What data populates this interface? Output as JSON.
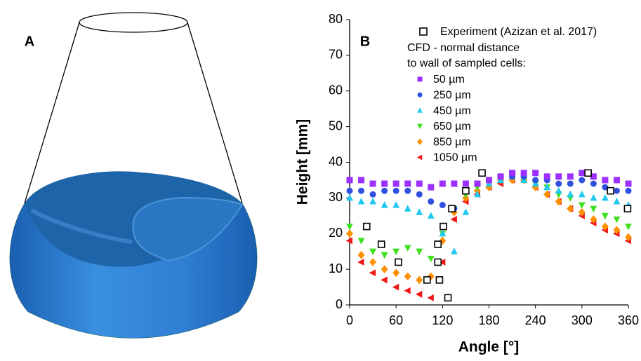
{
  "panel_a": {
    "label": "A"
  },
  "chart_data": {
    "type": "scatter",
    "panel_label": "B",
    "xlabel": "Angle   [°]",
    "ylabel": "Height   [mm]",
    "xlim": [
      0,
      360
    ],
    "xticks": [
      0,
      60,
      120,
      180,
      240,
      300,
      360
    ],
    "ylim": [
      0,
      80
    ],
    "yticks": [
      0,
      10,
      20,
      30,
      40,
      50,
      60,
      70,
      80
    ],
    "legend_title": [
      "CFD - normal distance",
      "to wall of sampled cells:"
    ],
    "series": [
      {
        "name": "Experiment (Azizan et al. 2017)",
        "marker": "square-open",
        "color": "#000000",
        "x": [
          22,
          41,
          63,
          100,
          116,
          114,
          114,
          121,
          127,
          132,
          150,
          171,
          308,
          337,
          359
        ],
        "y": [
          22,
          17,
          12,
          7,
          7,
          12,
          17,
          22,
          2,
          27,
          32,
          37,
          37,
          32,
          27
        ]
      },
      {
        "name": "50 µm",
        "marker": "square",
        "color": "#9b30ff",
        "x": [
          0,
          15,
          30,
          45,
          60,
          75,
          90,
          105,
          120,
          135,
          150,
          165,
          180,
          195,
          210,
          225,
          240,
          255,
          270,
          285,
          300,
          315,
          330,
          345,
          360
        ],
        "y": [
          35,
          35,
          34,
          34,
          34,
          34,
          34,
          33,
          34,
          34,
          34,
          34,
          35,
          36,
          37,
          37,
          37,
          36,
          36,
          36,
          37,
          36,
          35,
          35,
          34
        ]
      },
      {
        "name": "250 µm",
        "marker": "circle",
        "color": "#3050e0",
        "x": [
          0,
          15,
          30,
          45,
          60,
          75,
          90,
          105,
          120,
          135,
          150,
          165,
          180,
          195,
          210,
          225,
          240,
          255,
          270,
          285,
          300,
          315,
          330,
          345,
          360
        ],
        "y": [
          32,
          32,
          31,
          32,
          32,
          32,
          31,
          29,
          28,
          27,
          32,
          34,
          35,
          36,
          36,
          36,
          35,
          35,
          34,
          34,
          35,
          34,
          33,
          32,
          32
        ]
      },
      {
        "name": "450 µm",
        "marker": "triangle-up",
        "color": "#20c8f0",
        "x": [
          0,
          15,
          30,
          45,
          60,
          75,
          90,
          105,
          120,
          135,
          150,
          165,
          180,
          195,
          210,
          225,
          240,
          255,
          270,
          285,
          300,
          315,
          330,
          345,
          360
        ],
        "y": [
          30,
          29,
          29,
          28,
          28,
          27,
          26,
          25,
          20,
          15,
          26,
          31,
          34,
          35,
          36,
          35,
          34,
          33,
          32,
          31,
          31,
          30,
          30,
          29,
          28
        ]
      },
      {
        "name": "650 µm",
        "marker": "triangle-down",
        "color": "#40e020",
        "x": [
          0,
          15,
          30,
          45,
          60,
          75,
          90,
          105,
          120,
          135,
          150,
          165,
          180,
          195,
          210,
          225,
          240,
          255,
          270,
          285,
          300,
          315,
          330,
          345,
          360
        ],
        "y": [
          22,
          18,
          15,
          14,
          15,
          16,
          15,
          13,
          20,
          27,
          31,
          33,
          34,
          35,
          36,
          35,
          34,
          33,
          31,
          30,
          28,
          27,
          25,
          24,
          22
        ]
      },
      {
        "name": "850 µm",
        "marker": "diamond",
        "color": "#ff9000",
        "x": [
          0,
          15,
          30,
          45,
          60,
          75,
          90,
          105,
          120,
          135,
          150,
          165,
          180,
          195,
          210,
          225,
          240,
          255,
          270,
          285,
          300,
          315,
          330,
          345,
          360
        ],
        "y": [
          20,
          14,
          12,
          10,
          9,
          8,
          7,
          8,
          18,
          26,
          30,
          32,
          33,
          35,
          35,
          35,
          33,
          31,
          29,
          27,
          26,
          24,
          22,
          21,
          19
        ]
      },
      {
        "name": "1050 µm",
        "marker": "triangle-left",
        "color": "#f01818",
        "x": [
          0,
          15,
          30,
          45,
          60,
          75,
          90,
          105,
          120,
          135,
          150,
          165,
          180,
          195,
          210,
          225,
          240,
          255,
          270,
          285,
          300,
          315,
          330,
          345,
          360
        ],
        "y": [
          18,
          12,
          9,
          7,
          5,
          4,
          3,
          2,
          12,
          24,
          29,
          31,
          33,
          34,
          35,
          35,
          33,
          31,
          29,
          27,
          25,
          23,
          21,
          20,
          18
        ]
      }
    ]
  }
}
